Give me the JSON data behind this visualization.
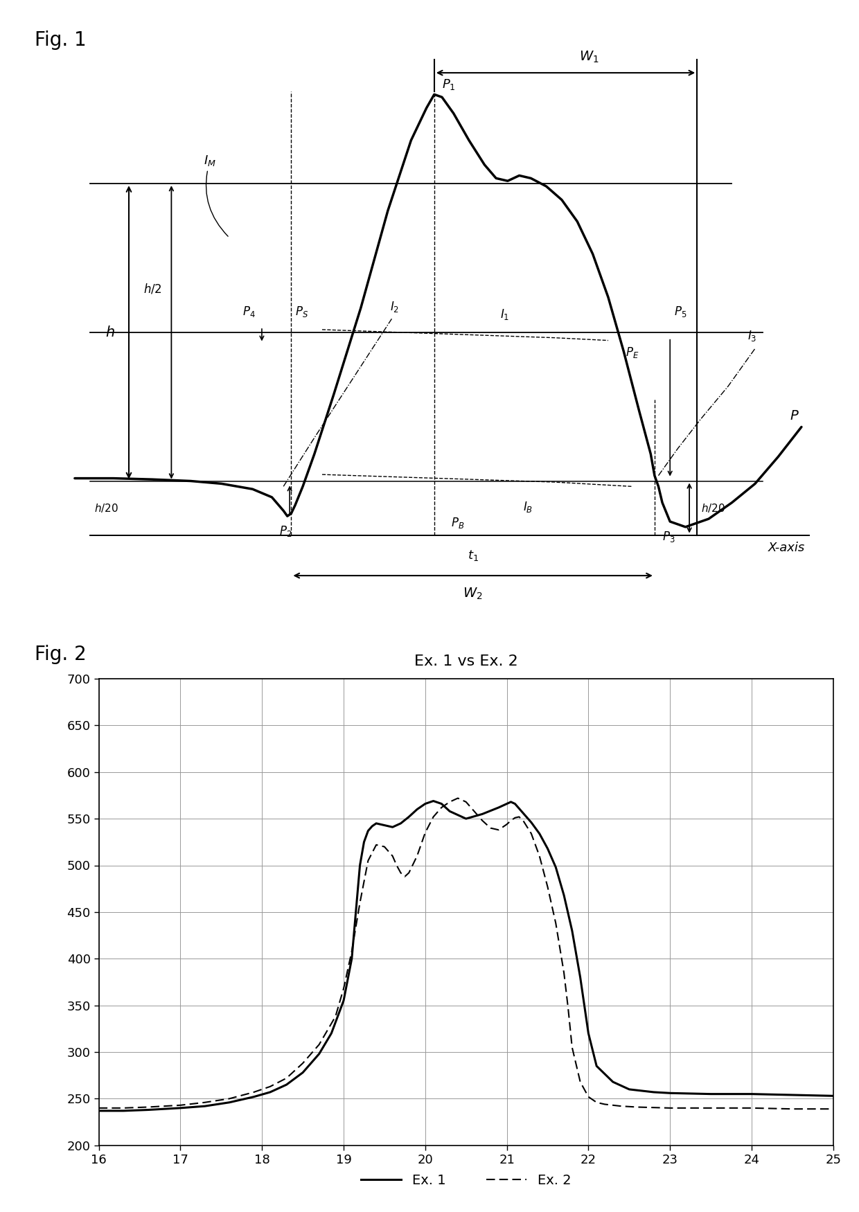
{
  "fig1_title": "Fig. 1",
  "fig2_title": "Fig. 2",
  "chart_title": "Ex. 1 vs Ex. 2",
  "xlim_fig2": [
    16,
    25
  ],
  "ylim_fig2": [
    200,
    700
  ],
  "xticks_fig2": [
    16,
    17,
    18,
    19,
    20,
    21,
    22,
    23,
    24,
    25
  ],
  "yticks_fig2": [
    200,
    250,
    300,
    350,
    400,
    450,
    500,
    550,
    600,
    650,
    700
  ],
  "ex1_x": [
    16.0,
    16.3,
    16.6,
    17.0,
    17.3,
    17.6,
    17.9,
    18.1,
    18.3,
    18.5,
    18.7,
    18.85,
    19.0,
    19.1,
    19.15,
    19.2,
    19.25,
    19.3,
    19.35,
    19.4,
    19.5,
    19.6,
    19.7,
    19.8,
    19.9,
    20.0,
    20.1,
    20.2,
    20.3,
    20.5,
    20.7,
    20.9,
    21.0,
    21.05,
    21.1,
    21.2,
    21.3,
    21.4,
    21.5,
    21.6,
    21.7,
    21.8,
    21.9,
    22.0,
    22.1,
    22.3,
    22.5,
    22.8,
    23.0,
    23.5,
    24.0,
    24.5,
    25.0
  ],
  "ex1_y": [
    237,
    237,
    238,
    240,
    242,
    246,
    252,
    257,
    265,
    278,
    298,
    320,
    355,
    400,
    450,
    500,
    525,
    537,
    542,
    545,
    543,
    541,
    545,
    552,
    560,
    566,
    569,
    566,
    558,
    550,
    555,
    562,
    566,
    568,
    566,
    556,
    546,
    534,
    518,
    498,
    468,
    430,
    380,
    320,
    285,
    268,
    260,
    257,
    256,
    255,
    255,
    254,
    253
  ],
  "ex2_x": [
    16.0,
    16.3,
    16.6,
    17.0,
    17.3,
    17.6,
    17.9,
    18.1,
    18.3,
    18.5,
    18.7,
    18.9,
    19.0,
    19.1,
    19.2,
    19.3,
    19.4,
    19.5,
    19.6,
    19.65,
    19.7,
    19.75,
    19.8,
    19.9,
    20.0,
    20.1,
    20.2,
    20.3,
    20.4,
    20.5,
    20.6,
    20.7,
    20.8,
    20.9,
    21.0,
    21.05,
    21.1,
    21.15,
    21.2,
    21.3,
    21.4,
    21.5,
    21.6,
    21.7,
    21.75,
    21.8,
    21.9,
    22.0,
    22.1,
    22.2,
    22.4,
    22.6,
    23.0,
    23.5,
    24.0,
    24.5,
    25.0
  ],
  "ex2_y": [
    240,
    240,
    241,
    243,
    246,
    250,
    257,
    263,
    272,
    288,
    308,
    338,
    368,
    408,
    460,
    505,
    522,
    520,
    510,
    500,
    492,
    488,
    492,
    510,
    535,
    552,
    562,
    568,
    572,
    568,
    558,
    548,
    540,
    538,
    544,
    548,
    551,
    552,
    548,
    534,
    510,
    477,
    438,
    385,
    348,
    305,
    268,
    252,
    246,
    244,
    242,
    241,
    240,
    240,
    240,
    239,
    239
  ],
  "background_color": "#ffffff",
  "line_color_ex1": "#000000",
  "line_color_ex2": "#000000",
  "grid_color": "#999999"
}
